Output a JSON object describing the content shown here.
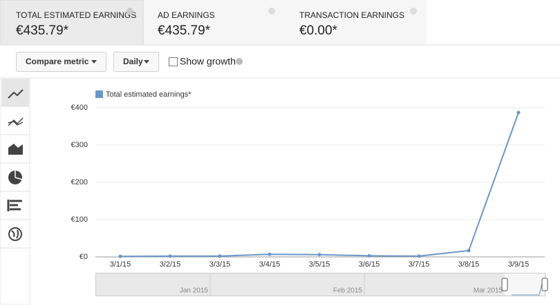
{
  "tabs": [
    {
      "label": "TOTAL ESTIMATED EARNINGS",
      "value": "€435.79*"
    },
    {
      "label": "AD EARNINGS",
      "value": "€435.79*"
    },
    {
      "label": "TRANSACTION EARNINGS",
      "value": "€0.00*"
    }
  ],
  "controls": {
    "compare": "Compare metric",
    "period": "Daily",
    "growth": "Show growth"
  },
  "navigator": {
    "labels": [
      "Jan 2015",
      "Feb 2015",
      "Mar 2015"
    ]
  },
  "chart_data": {
    "type": "line",
    "categories": [
      "3/1/15",
      "3/2/15",
      "3/3/15",
      "3/4/15",
      "3/5/15",
      "3/6/15",
      "3/7/15",
      "3/8/15",
      "3/9/15"
    ],
    "series": [
      {
        "name": "Total estimated earnings*",
        "color": "#6a96c8",
        "values": [
          1.5,
          2,
          2,
          7,
          6,
          3,
          2,
          17,
          387
        ]
      }
    ],
    "ylim": [
      0,
      400
    ],
    "yticks": [
      {
        "value": 0,
        "label": "€0"
      },
      {
        "value": 100,
        "label": "€100"
      },
      {
        "value": 200,
        "label": "€200"
      },
      {
        "value": 300,
        "label": "€300"
      },
      {
        "value": 400,
        "label": "€400"
      }
    ],
    "grid": true,
    "legend": "top-left"
  }
}
